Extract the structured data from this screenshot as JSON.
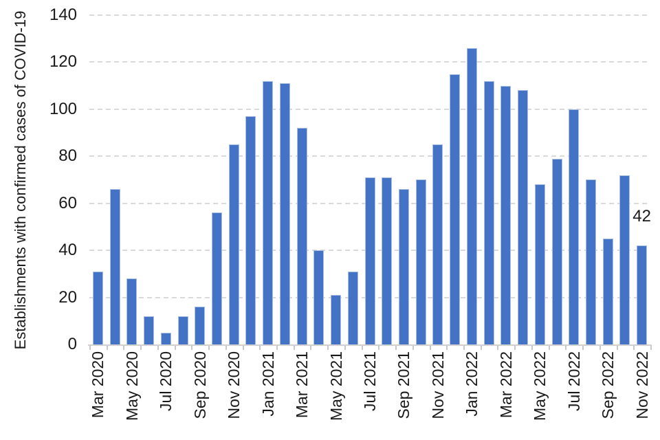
{
  "chart_data": {
    "type": "bar",
    "title": "",
    "xlabel": "",
    "ylabel": "Establishments with confirmed cases of COVID-19",
    "ylim": [
      0,
      140
    ],
    "yticks": [
      0,
      20,
      40,
      60,
      80,
      100,
      120,
      140
    ],
    "grid": "horizontal-dashed",
    "legend": "none",
    "categories": [
      "Mar 2020",
      "Apr 2020",
      "May 2020",
      "Jun 2020",
      "Jul 2020",
      "Aug 2020",
      "Sep 2020",
      "Oct 2020",
      "Nov 2020",
      "Dec 2020",
      "Jan 2021",
      "Feb 2021",
      "Mar 2021",
      "Apr 2021",
      "May 2021",
      "Jun 2021",
      "Jul 2021",
      "Aug 2021",
      "Sep 2021",
      "Oct 2021",
      "Nov 2021",
      "Dec 2021",
      "Jan 2022",
      "Feb 2022",
      "Mar 2022",
      "Apr 2022",
      "May 2022",
      "Jun 2022",
      "Jul 2022",
      "Aug 2022",
      "Sep 2022",
      "Oct 2022",
      "Nov 2022"
    ],
    "values": [
      31,
      66,
      28,
      12,
      5,
      12,
      16,
      56,
      85,
      97,
      112,
      111,
      92,
      40,
      21,
      31,
      71,
      71,
      66,
      70,
      85,
      115,
      126,
      112,
      110,
      108,
      68,
      79,
      100,
      70,
      45,
      72,
      42
    ],
    "x_tick_labels_shown": [
      "Mar 2020",
      "May 2020",
      "Jul 2020",
      "Sep 2020",
      "Nov 2020",
      "Jan 2021",
      "Mar 2021",
      "May 2021",
      "Jul 2021",
      "Sep 2021",
      "Nov 2021",
      "Jan 2022",
      "Mar 2022",
      "May 2022",
      "Jul 2022",
      "Sep 2022",
      "Nov 2022"
    ],
    "annotations": [
      {
        "category": "Nov 2022",
        "category_index": 32,
        "text": "42"
      }
    ],
    "colors": {
      "bar_fill": "#4472C4",
      "bar_border": "#A9BFE4",
      "gridline": "#D9D9D9",
      "axis_line": "#D0D0D0",
      "tick_mark": "#C8C8C8",
      "text": "#1A1A1A"
    }
  }
}
